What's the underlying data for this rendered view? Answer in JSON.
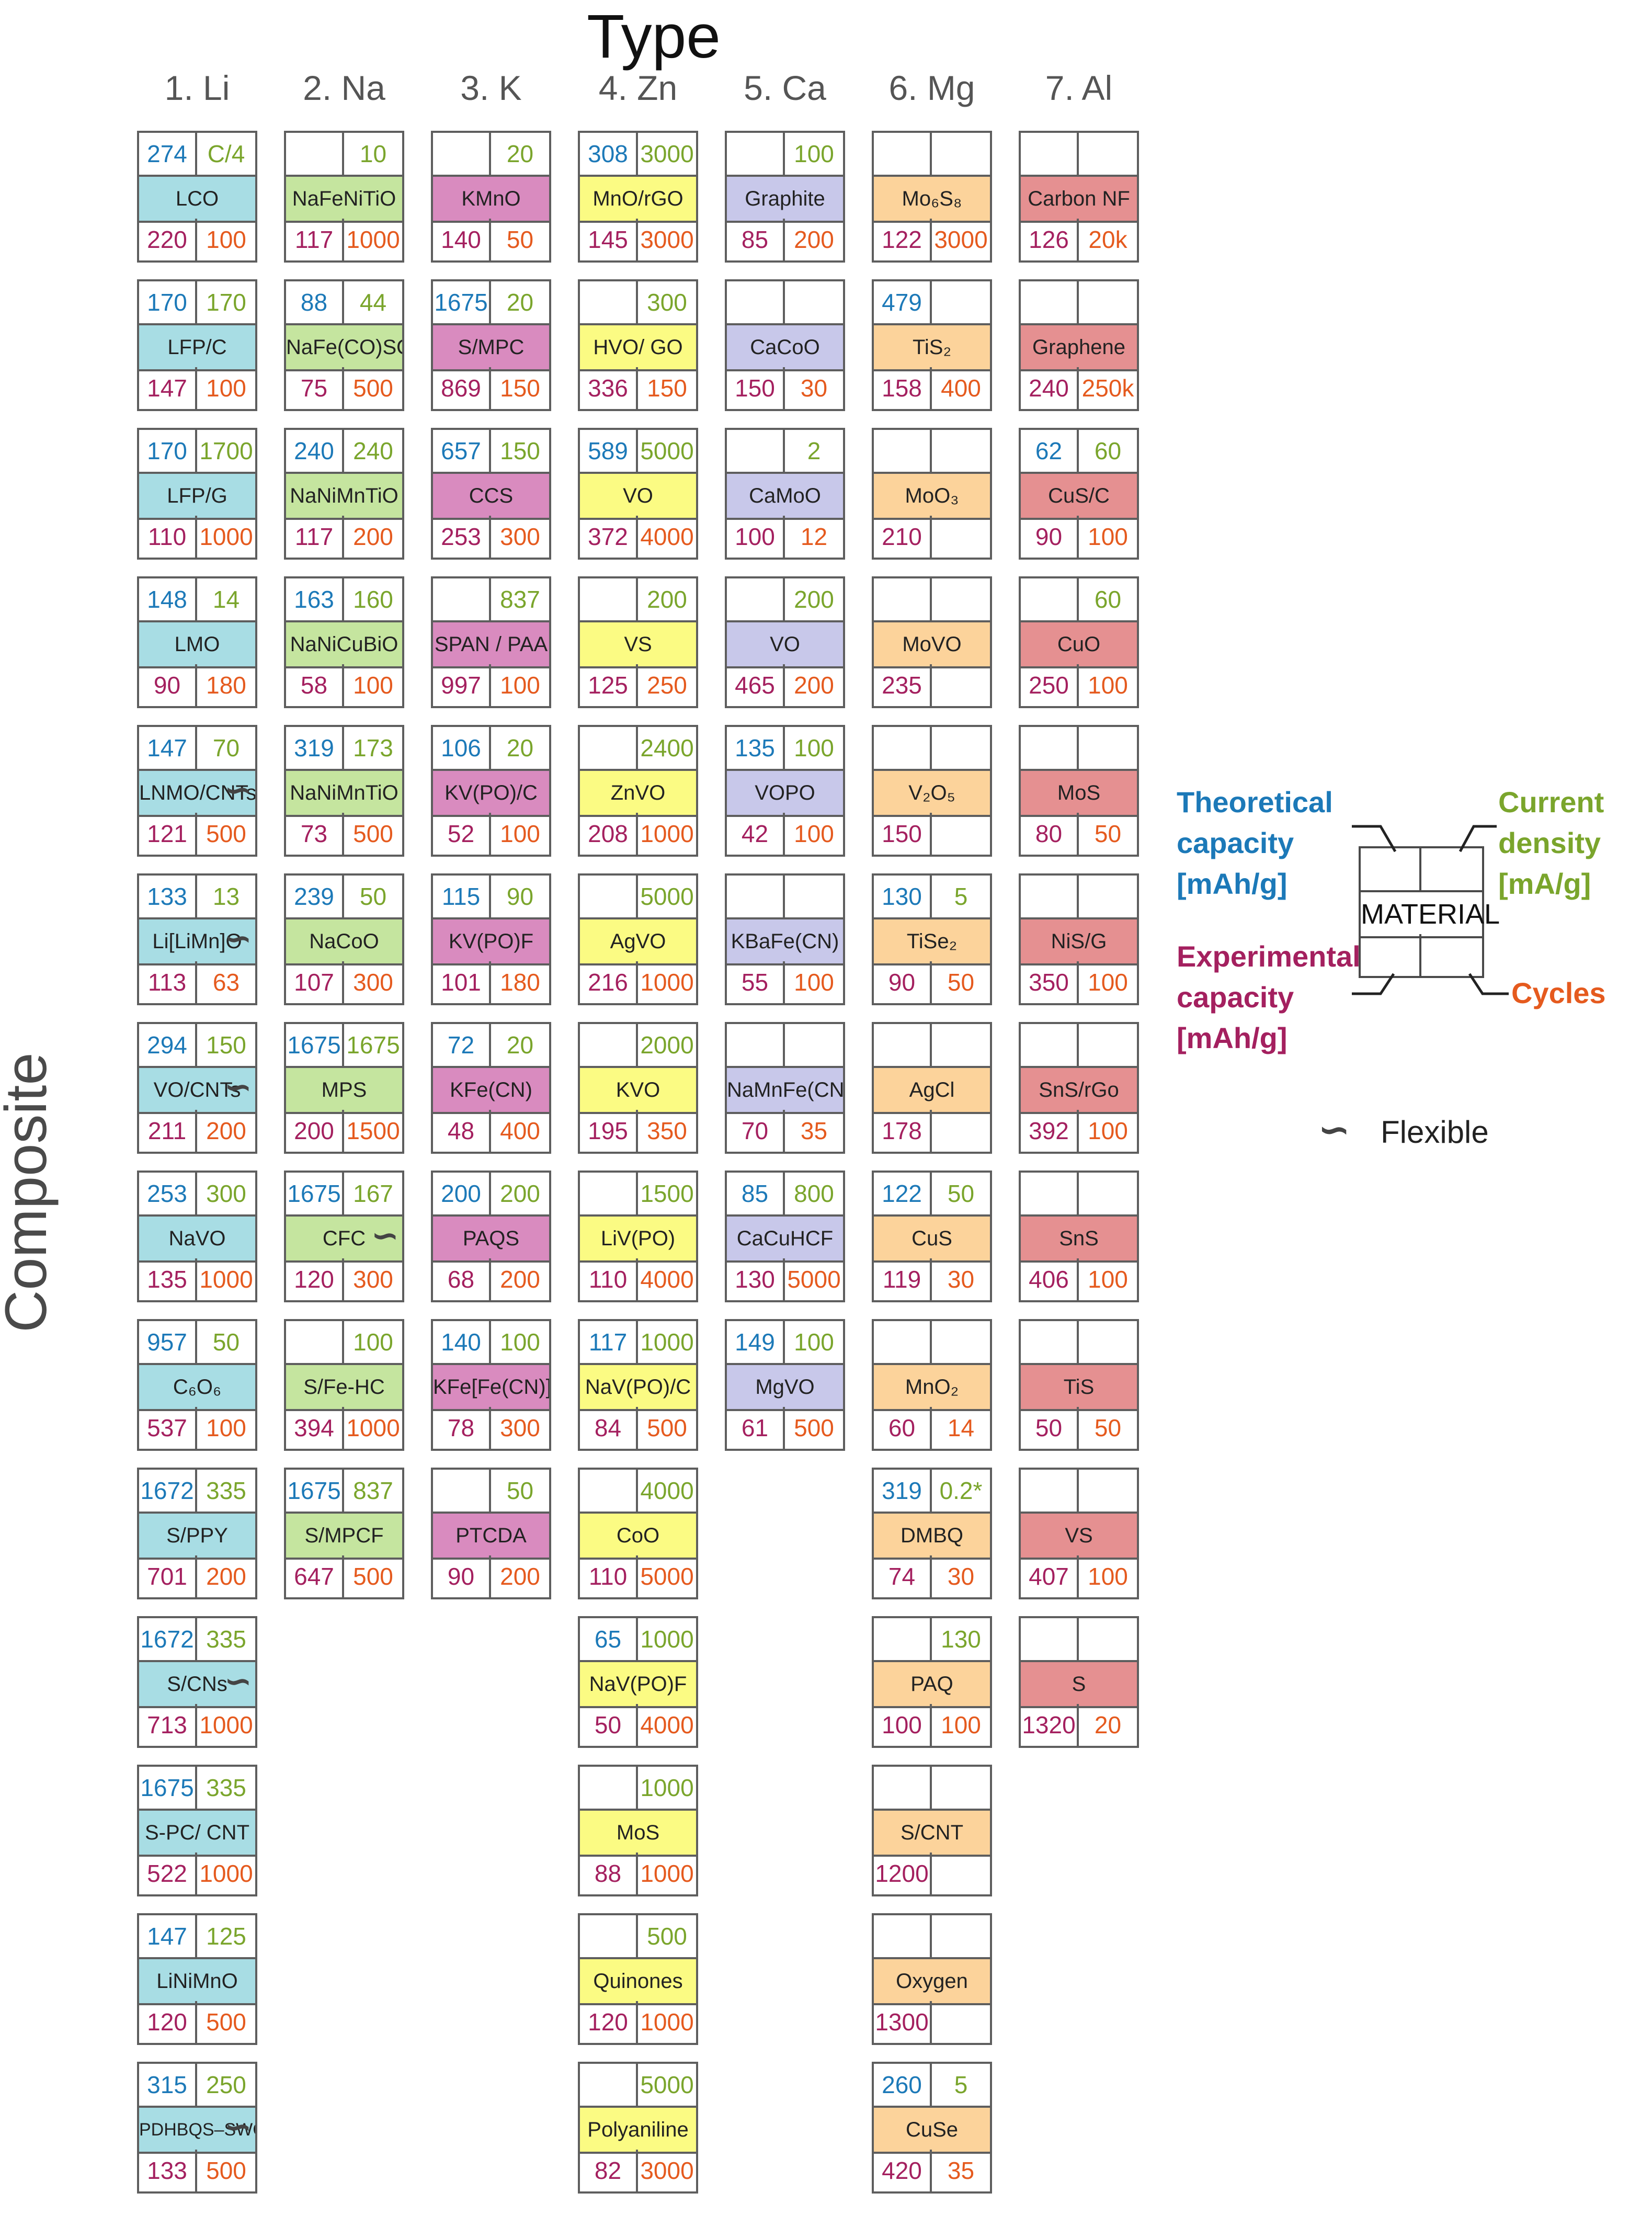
{
  "title": "Type",
  "side_label": "Composite",
  "colors": {
    "theoretical": "#1c79b8",
    "current": "#7aa52c",
    "experimental": "#a4205f",
    "cycles": "#e55a1e",
    "fills": [
      "#a8dde4",
      "#c5e59f",
      "#d98bbf",
      "#fbfb83",
      "#c8c8ea",
      "#fcd39b",
      "#e59091"
    ]
  },
  "flex_symbol": "∽",
  "columns": [
    {
      "label": "1. Li",
      "cells": [
        [
          "274",
          "C/4",
          "LCO",
          "220",
          "100",
          0
        ],
        [
          "170",
          "170",
          "LFP/C",
          "147",
          "100",
          0
        ],
        [
          "170",
          "1700",
          "LFP/G",
          "110",
          "1000",
          0
        ],
        [
          "148",
          "14",
          "LMO",
          "90",
          "180",
          0
        ],
        [
          "147",
          "70",
          "LNMO/CNTs",
          "121",
          "500",
          1
        ],
        [
          "133",
          "13",
          "Li[LiMn]O",
          "113",
          "63",
          1
        ],
        [
          "294",
          "150",
          "VO/CNTs",
          "211",
          "200",
          1
        ],
        [
          "253",
          "300",
          "NaVO",
          "135",
          "1000",
          0
        ],
        [
          "957",
          "50",
          "C₆O₆",
          "537",
          "100",
          0
        ],
        [
          "1672",
          "335",
          "S/PPY",
          "701",
          "200",
          0
        ],
        [
          "1672",
          "335",
          "S/CNs",
          "713",
          "1000",
          1
        ],
        [
          "1675",
          "335",
          "S-PC/ CNT",
          "522",
          "1000",
          0
        ],
        [
          "147",
          "125",
          "LiNiMnO",
          "120",
          "500",
          0
        ],
        [
          "315",
          "250",
          "PDHBQS–SWCNTs",
          "133",
          "500",
          1
        ]
      ]
    },
    {
      "label": "2. Na",
      "cells": [
        [
          "",
          "10",
          "NaFeNiTiO",
          "117",
          "1000",
          0
        ],
        [
          "88",
          "44",
          "NaFe(CO)SO",
          "75",
          "500",
          0
        ],
        [
          "240",
          "240",
          "NaNiMnTiO",
          "117",
          "200",
          0
        ],
        [
          "163",
          "160",
          "NaNiCuBiO",
          "58",
          "100",
          0
        ],
        [
          "319",
          "173",
          "NaNiMnTiO",
          "73",
          "500",
          0
        ],
        [
          "239",
          "50",
          "NaCoO",
          "107",
          "300",
          0
        ],
        [
          "1675",
          "1675",
          "MPS",
          "200",
          "1500",
          0
        ],
        [
          "1675",
          "167",
          "CFC",
          "120",
          "300",
          1
        ],
        [
          "",
          "100",
          "S/Fe-HC",
          "394",
          "1000",
          0
        ],
        [
          "1675",
          "837",
          "S/MPCF",
          "647",
          "500",
          0
        ]
      ]
    },
    {
      "label": "3. K",
      "cells": [
        [
          "",
          "20",
          "KMnO",
          "140",
          "50",
          0
        ],
        [
          "1675",
          "20",
          "S/MPC",
          "869",
          "150",
          0
        ],
        [
          "657",
          "150",
          "CCS",
          "253",
          "300",
          0
        ],
        [
          "",
          "837",
          "SPAN / PAA",
          "997",
          "100",
          0
        ],
        [
          "106",
          "20",
          "KV(PO)/C",
          "52",
          "100",
          0
        ],
        [
          "115",
          "90",
          "KV(PO)F",
          "101",
          "180",
          0
        ],
        [
          "72",
          "20",
          "KFe(CN)",
          "48",
          "400",
          0
        ],
        [
          "200",
          "200",
          "PAQS",
          "68",
          "200",
          0
        ],
        [
          "140",
          "100",
          "KFe[Fe(CN)]",
          "78",
          "300",
          0
        ],
        [
          "",
          "50",
          "PTCDA",
          "90",
          "200",
          0
        ]
      ]
    },
    {
      "label": "4. Zn",
      "cells": [
        [
          "308",
          "3000",
          "MnO/rGO",
          "145",
          "3000",
          0
        ],
        [
          "",
          "300",
          "HVO/ GO",
          "336",
          "150",
          0
        ],
        [
          "589",
          "5000",
          "VO",
          "372",
          "4000",
          0
        ],
        [
          "",
          "200",
          "VS",
          "125",
          "250",
          0
        ],
        [
          "",
          "2400",
          "ZnVO",
          "208",
          "1000",
          0
        ],
        [
          "",
          "5000",
          "AgVO",
          "216",
          "1000",
          0
        ],
        [
          "",
          "2000",
          "KVO",
          "195",
          "350",
          0
        ],
        [
          "",
          "1500",
          "LiV(PO)",
          "110",
          "4000",
          0
        ],
        [
          "117",
          "1000",
          "NaV(PO)/C",
          "84",
          "500",
          0
        ],
        [
          "",
          "4000",
          "CoO",
          "110",
          "5000",
          0
        ],
        [
          "65",
          "1000",
          "NaV(PO)F",
          "50",
          "4000",
          0
        ],
        [
          "",
          "1000",
          "MoS",
          "88",
          "1000",
          0
        ],
        [
          "",
          "500",
          "Quinones",
          "120",
          "1000",
          0
        ],
        [
          "",
          "5000",
          "Polyaniline",
          "82",
          "3000",
          0
        ]
      ]
    },
    {
      "label": "5. Ca",
      "cells": [
        [
          "",
          "100",
          "Graphite",
          "85",
          "200",
          0
        ],
        [
          "",
          "",
          "CaCoO",
          "150",
          "30",
          0
        ],
        [
          "",
          "2",
          "CaMoO",
          "100",
          "12",
          0
        ],
        [
          "",
          "200",
          "VO",
          "465",
          "200",
          0
        ],
        [
          "135",
          "100",
          "VOPO",
          "42",
          "100",
          0
        ],
        [
          "",
          "",
          "KBaFe(CN)",
          "55",
          "100",
          0
        ],
        [
          "",
          "",
          "NaMnFe(CN)",
          "70",
          "35",
          0
        ],
        [
          "85",
          "800",
          "CaCuHCF",
          "130",
          "5000",
          0
        ],
        [
          "149",
          "100",
          "MgVO",
          "61",
          "500",
          0
        ]
      ]
    },
    {
      "label": "6. Mg",
      "cells": [
        [
          "",
          "",
          "Mo₆S₈",
          "122",
          "3000",
          0
        ],
        [
          "479",
          "",
          "TiS₂",
          "158",
          "400",
          0
        ],
        [
          "",
          "",
          "MoO₃",
          "210",
          "",
          0
        ],
        [
          "",
          "",
          "MoVO",
          "235",
          "",
          0
        ],
        [
          "",
          "",
          "V₂O₅",
          "150",
          "",
          0
        ],
        [
          "130",
          "5",
          "TiSe₂",
          "90",
          "50",
          0
        ],
        [
          "",
          "",
          "AgCl",
          "178",
          "",
          0
        ],
        [
          "122",
          "50",
          "CuS",
          "119",
          "30",
          0
        ],
        [
          "",
          "",
          "MnO₂",
          "60",
          "14",
          0
        ],
        [
          "319",
          "0.2*",
          "DMBQ",
          "74",
          "30",
          0
        ],
        [
          "",
          "130",
          "PAQ",
          "100",
          "100",
          0
        ],
        [
          "",
          "",
          "S/CNT",
          "1200",
          "",
          0
        ],
        [
          "",
          "",
          "Oxygen",
          "1300",
          "",
          0
        ],
        [
          "260",
          "5",
          "CuSe",
          "420",
          "35",
          0
        ]
      ]
    },
    {
      "label": "7. Al",
      "cells": [
        [
          "",
          "",
          "Carbon NF",
          "126",
          "20k",
          0
        ],
        [
          "",
          "",
          "Graphene",
          "240",
          "250k",
          0
        ],
        [
          "62",
          "60",
          "CuS/C",
          "90",
          "100",
          0
        ],
        [
          "",
          "60",
          "CuO",
          "250",
          "100",
          0
        ],
        [
          "",
          "",
          "MoS",
          "80",
          "50",
          0
        ],
        [
          "",
          "",
          "NiS/G",
          "350",
          "100",
          0
        ],
        [
          "",
          "",
          "SnS/rGo",
          "392",
          "100",
          0
        ],
        [
          "",
          "",
          "SnS",
          "406",
          "100",
          0
        ],
        [
          "",
          "",
          "TiS",
          "50",
          "50",
          0
        ],
        [
          "",
          "",
          "VS",
          "407",
          "100",
          0
        ],
        [
          "",
          "",
          "S",
          "1320",
          "20",
          0
        ]
      ]
    }
  ],
  "legend": {
    "theoretical": "Theoretical capacity [mAh/g]",
    "current": "Current density [mA/g]",
    "experimental": "Experimental capacity [mAh/g]",
    "cycles": "Cycles",
    "material": "MATERIAL",
    "flexible": "Flexible"
  }
}
